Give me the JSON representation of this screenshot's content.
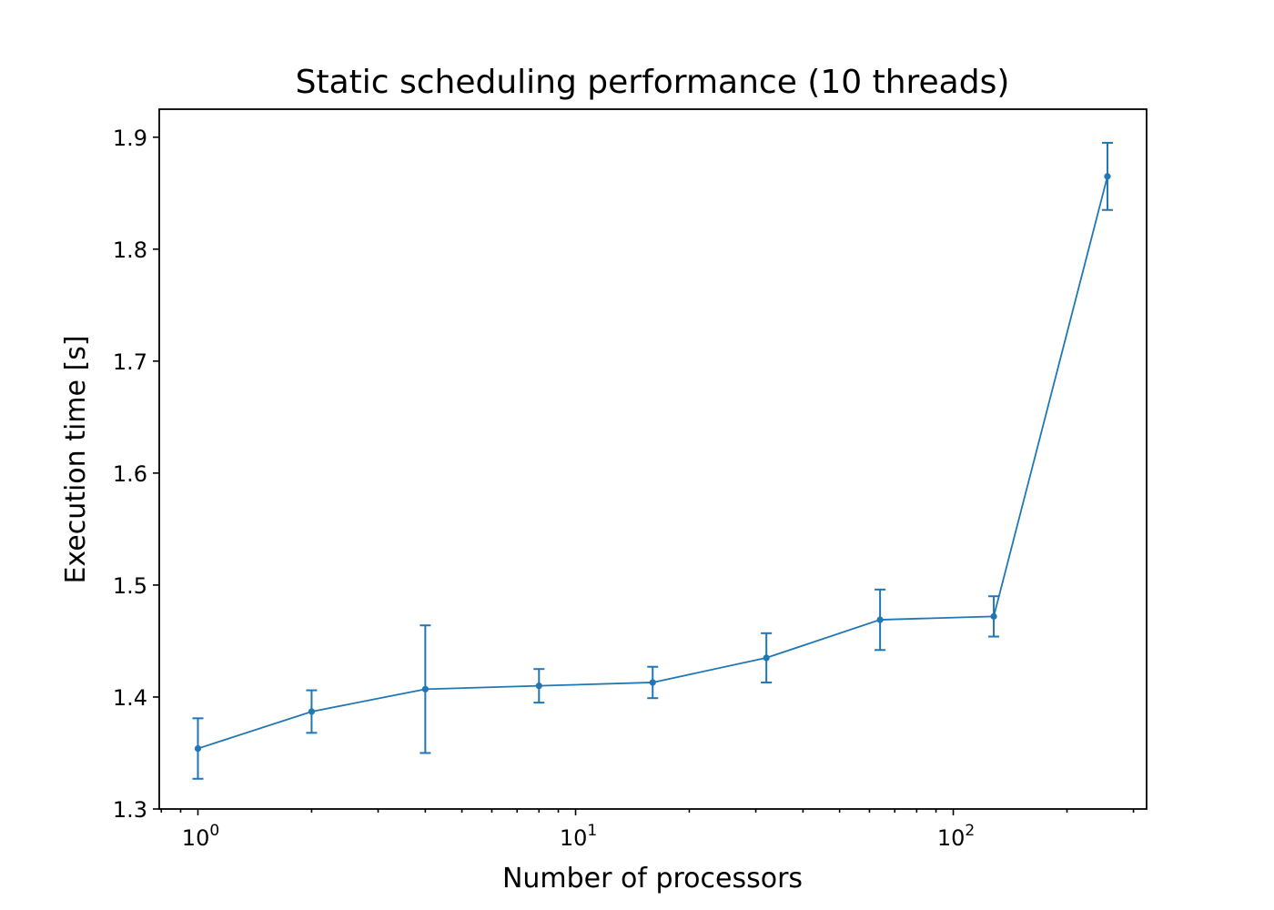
{
  "chart_data": {
    "type": "line",
    "title": "Static scheduling performance (10 threads)",
    "xlabel": "Number of processors",
    "ylabel": "Execution time [s]",
    "xscale": "log",
    "xlim": [
      0.79,
      325
    ],
    "ylim": [
      1.3,
      1.925
    ],
    "grid": false,
    "x_ticks": [
      {
        "base": "10",
        "exp": "0",
        "value": 1
      },
      {
        "base": "10",
        "exp": "1",
        "value": 10
      },
      {
        "base": "10",
        "exp": "2",
        "value": 100
      }
    ],
    "y_ticks": [
      {
        "label": "1.3",
        "value": 1.3
      },
      {
        "label": "1.4",
        "value": 1.4
      },
      {
        "label": "1.5",
        "value": 1.5
      },
      {
        "label": "1.6",
        "value": 1.6
      },
      {
        "label": "1.7",
        "value": 1.7
      },
      {
        "label": "1.8",
        "value": 1.8
      },
      {
        "label": "1.9",
        "value": 1.9
      }
    ],
    "series": [
      {
        "color": "#1f77b4",
        "x": [
          1,
          2,
          4,
          8,
          16,
          32,
          64,
          128,
          256
        ],
        "y": [
          1.354,
          1.387,
          1.407,
          1.41,
          1.413,
          1.435,
          1.469,
          1.472,
          1.865
        ],
        "y_err": [
          0.027,
          0.019,
          0.057,
          0.015,
          0.014,
          0.022,
          0.027,
          0.018,
          0.03
        ]
      }
    ]
  }
}
